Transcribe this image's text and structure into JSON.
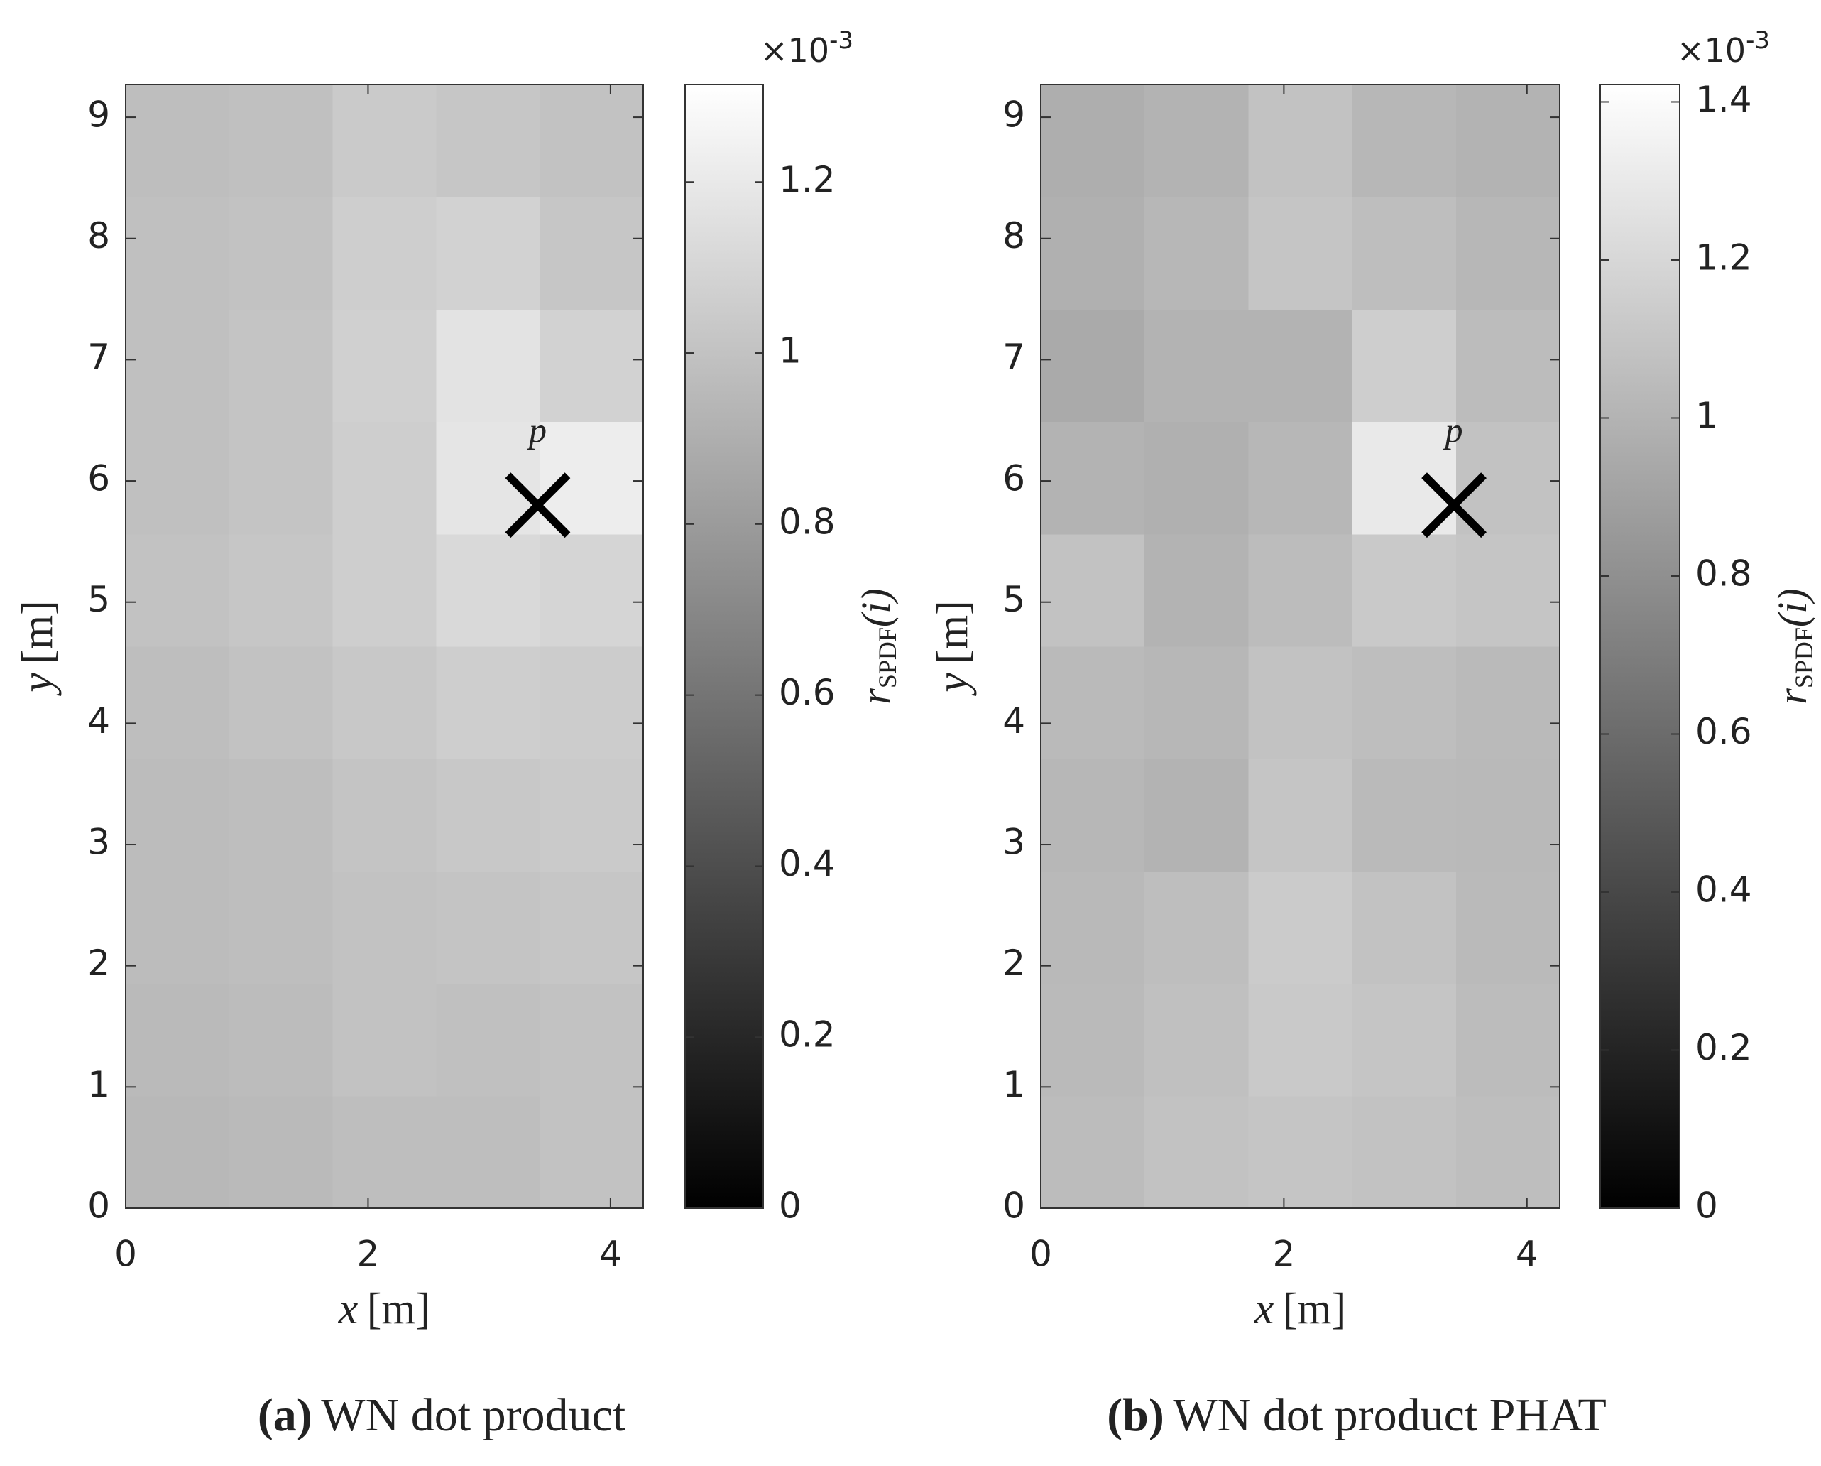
{
  "chart_data": [
    {
      "type": "heatmap",
      "caption_label": "(a)",
      "caption": "WN dot product",
      "x_label": {
        "var": "x",
        "unit": "[m]"
      },
      "y_label": {
        "var": "y",
        "unit": "[m]"
      },
      "xlim": [
        0,
        4.27
      ],
      "ylim": [
        0,
        9.27
      ],
      "xticks": [
        0,
        2,
        4
      ],
      "yticks": [
        0,
        1,
        2,
        3,
        4,
        5,
        6,
        7,
        8,
        9
      ],
      "colormap": "gray",
      "clim": [
        0,
        1.314
      ],
      "cticks": [
        0,
        0.2,
        0.4,
        0.6,
        0.8,
        1,
        1.2
      ],
      "colorbar_label": {
        "base": "r",
        "sub": "SPDF",
        "arg": "(i)"
      },
      "colorbar_exponent": {
        "base": "×10",
        "power": "-3"
      },
      "marker": {
        "x": 3.4,
        "y": 5.8,
        "label": "p"
      },
      "z": [
        [
          0.95,
          0.96,
          0.98,
          0.98,
          1.0
        ],
        [
          0.96,
          0.97,
          1.0,
          0.99,
          1.0
        ],
        [
          0.97,
          0.98,
          1.0,
          1.01,
          1.02
        ],
        [
          0.97,
          0.98,
          1.01,
          1.03,
          1.04
        ],
        [
          0.98,
          1.0,
          1.03,
          1.06,
          1.05
        ],
        [
          1.0,
          1.02,
          1.06,
          1.12,
          1.1
        ],
        [
          0.99,
          1.01,
          1.06,
          1.18,
          1.22
        ],
        [
          0.99,
          1.01,
          1.07,
          1.17,
          1.08
        ],
        [
          0.99,
          1.0,
          1.06,
          1.08,
          1.02
        ],
        [
          0.98,
          0.99,
          1.04,
          1.02,
          1.0
        ]
      ]
    },
    {
      "type": "heatmap",
      "caption_label": "(b)",
      "caption": "WN dot product PHAT",
      "x_label": {
        "var": "x",
        "unit": "[m]"
      },
      "y_label": {
        "var": "y",
        "unit": "[m]"
      },
      "xlim": [
        0,
        4.27
      ],
      "ylim": [
        0,
        9.27
      ],
      "xticks": [
        0,
        2,
        4
      ],
      "yticks": [
        0,
        1,
        2,
        3,
        4,
        5,
        6,
        7,
        8,
        9
      ],
      "colormap": "gray",
      "clim": [
        0,
        1.422
      ],
      "cticks": [
        0,
        0.2,
        0.4,
        0.6,
        0.8,
        1,
        1.2,
        1.4
      ],
      "colorbar_label": {
        "base": "r",
        "sub": "SPDF",
        "arg": "(i)"
      },
      "colorbar_exponent": {
        "base": "×10",
        "power": "-3"
      },
      "marker": {
        "x": 3.4,
        "y": 5.8,
        "label": "p"
      },
      "z": [
        [
          1.05,
          1.08,
          1.1,
          1.08,
          1.06
        ],
        [
          1.04,
          1.07,
          1.12,
          1.1,
          1.05
        ],
        [
          1.03,
          1.06,
          1.13,
          1.08,
          1.04
        ],
        [
          1.02,
          1.0,
          1.1,
          1.04,
          1.03
        ],
        [
          1.04,
          1.02,
          1.08,
          1.06,
          1.04
        ],
        [
          1.08,
          1.0,
          1.05,
          1.12,
          1.1
        ],
        [
          1.0,
          0.98,
          1.02,
          1.3,
          1.08
        ],
        [
          0.95,
          1.0,
          1.0,
          1.15,
          1.05
        ],
        [
          0.98,
          1.02,
          1.1,
          1.06,
          1.02
        ],
        [
          0.97,
          1.0,
          1.08,
          1.02,
          1.0
        ]
      ]
    }
  ]
}
